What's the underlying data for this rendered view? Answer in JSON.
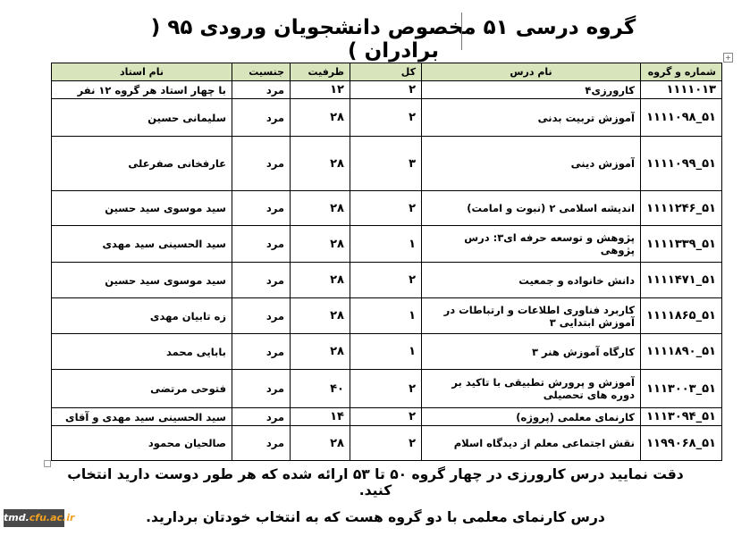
{
  "title": "گروه درسی ۵۱   مخصوص دانشجویان ورودی ۹۵ ( برادران )",
  "table": {
    "headers": [
      "شماره و گروه",
      "نام درس",
      "کل",
      "ظرفیت",
      "جنسیت",
      "نام استاد"
    ],
    "rows": [
      [
        "۱۱۱۱۰۱۳",
        "کارورزی۴",
        "۲",
        "۱۲",
        "مرد",
        "با چهار استاد هر گروه ۱۲ نفر"
      ],
      [
        "۵۱_۱۱۱۱۰۹۸",
        "آموزش تربیت بدنی",
        "۲",
        "۲۸",
        "مرد",
        "سلیمانی حسین"
      ],
      [
        "۵۱_۱۱۱۱۰۹۹",
        "آموزش دینی",
        "۳",
        "۲۸",
        "مرد",
        "عارفخانی صفرعلی"
      ],
      [
        "۵۱_۱۱۱۱۲۴۶",
        "اندیشه اسلامی ۲ (نبوت و امامت)",
        "۲",
        "۲۸",
        "مرد",
        "سید موسوی سید حسین"
      ],
      [
        "۵۱_۱۱۱۱۳۳۹",
        "پژوهش و توسعه حرفه ای۳: درس پژوهی",
        "۱",
        "۲۸",
        "مرد",
        "سید الحسینی سید مهدی"
      ],
      [
        "۵۱_۱۱۱۱۴۷۱",
        "دانش خانواده و جمعیت",
        "۲",
        "۲۸",
        "مرد",
        "سید موسوی سید حسین"
      ],
      [
        "۵۱_۱۱۱۱۸۶۵",
        "کاربرد فناوری اطلاعات و ارتباطات در آموزش ابتدایی ۳",
        "۱",
        "۲۸",
        "مرد",
        "زه تابیان مهدی"
      ],
      [
        "۵۱_۱۱۱۱۸۹۰",
        "کارگاه آموزش هنر ۳",
        "۱",
        "۲۸",
        "مرد",
        "بابایی محمد"
      ],
      [
        "۵۱_۱۱۱۳۰۰۳",
        "آموزش و پرورش تطبیقی با تاکید بر دوره های تحصیلی",
        "۲",
        "۴۰",
        "مرد",
        "فتوحی مرتضی"
      ],
      [
        "۵۱_۱۱۱۳۰۹۴",
        "کارنمای معلمی (پروژه)",
        "۲",
        "۱۴",
        "مرد",
        "سید الحسینی سید مهدی و آقای"
      ],
      [
        "۵۱_۱۱۹۹۰۶۸",
        "نقش اجتماعی معلم از دیدگاه اسلام",
        "۲",
        "۲۸",
        "مرد",
        "صالحیان محمود"
      ]
    ]
  },
  "notes": [
    "دقت نمایید درس کارورزی در چهار گروه  ۵۰ تا ۵۳ ارائه شده که هر طور دوست دارید انتخاب کنید.",
    "درس کارنمای معلمی  با دو گروه هست که به انتخاب خودتان بردارید."
  ],
  "watermark": {
    "prefix": "tmd.",
    "domain": "cfu.ac.ir",
    "accent": "#f0a020"
  },
  "colors": {
    "header_bg": "#d8e4bc"
  }
}
